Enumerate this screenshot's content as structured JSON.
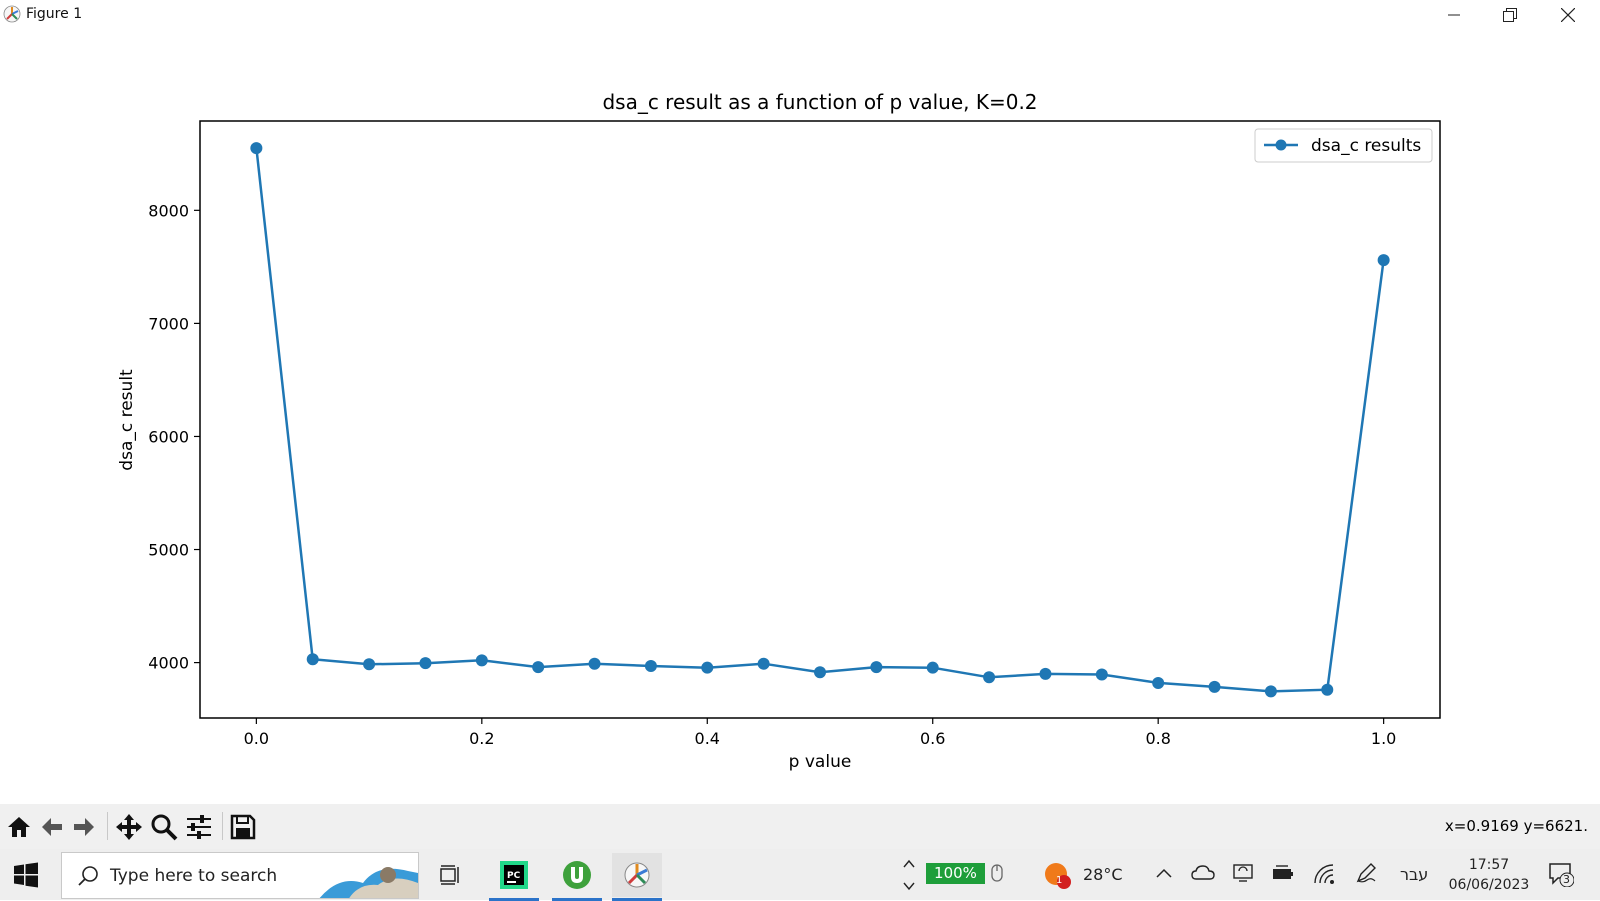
{
  "window": {
    "title": "Figure 1",
    "controls": {
      "minimize": "minimize",
      "restore": "restore",
      "close": "close"
    }
  },
  "chart_data": {
    "type": "line",
    "title": "dsa_c result as a function of p value, K=0.2",
    "xlabel": "p value",
    "ylabel": "dsa_c result",
    "x": [
      0.0,
      0.05,
      0.1,
      0.15,
      0.2,
      0.25,
      0.3,
      0.35,
      0.4,
      0.45,
      0.5,
      0.55,
      0.6,
      0.65,
      0.7,
      0.75,
      0.8,
      0.85,
      0.9,
      0.95,
      1.0
    ],
    "series": [
      {
        "name": "dsa_c results",
        "color": "#1f77b4",
        "marker": "circle",
        "values": [
          8550,
          4030,
          3985,
          3995,
          4020,
          3960,
          3990,
          3970,
          3955,
          3990,
          3915,
          3960,
          3955,
          3870,
          3900,
          3895,
          3820,
          3785,
          3745,
          3760,
          7560
        ]
      }
    ],
    "xticks": [
      0.0,
      0.2,
      0.4,
      0.6,
      0.8,
      1.0
    ],
    "xtick_labels": [
      "0.0",
      "0.2",
      "0.4",
      "0.6",
      "0.8",
      "1.0"
    ],
    "yticks": [
      4000,
      5000,
      6000,
      7000,
      8000
    ],
    "ytick_labels": [
      "4000",
      "5000",
      "6000",
      "7000",
      "8000"
    ],
    "xlim": [
      -0.05,
      1.05
    ],
    "ylim": [
      3510,
      8790
    ],
    "grid": false,
    "legend_position": "top-right"
  },
  "toolbar": {
    "tools": [
      "home-icon",
      "back-icon",
      "forward-icon",
      "pan-icon",
      "zoom-icon",
      "configure-subplots-icon",
      "save-icon"
    ],
    "coords_text": "x=0.9169 y=6621."
  },
  "taskbar": {
    "search_placeholder": "Type here to search",
    "zoom_badge": "100%",
    "weather_temp": "28°C",
    "weather_alert_count": "1",
    "language": "עבר",
    "time": "17:57",
    "date": "06/06/2023",
    "notification_count": "3",
    "accent_color": "#2b73c9"
  }
}
